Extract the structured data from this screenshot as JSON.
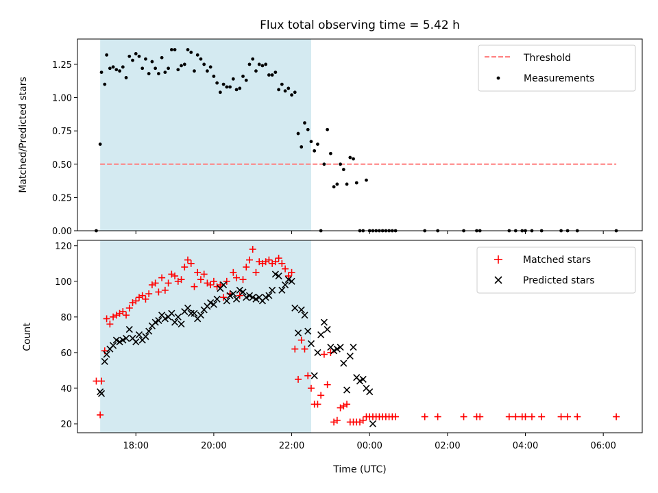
{
  "chart_data": [
    {
      "type": "scatter",
      "title": "Flux total observing time = 5.42 h",
      "xlabel": "",
      "ylabel": "Matched/Predicted stars",
      "xlim": [
        "16:30",
        "07:00"
      ],
      "ylim": [
        0,
        1.44
      ],
      "y_ticks": [
        "0.00",
        "0.25",
        "0.50",
        "0.75",
        "1.00",
        "1.25"
      ],
      "x_ticks": [
        "18:00",
        "20:00",
        "22:00",
        "00:00",
        "02:00",
        "04:00",
        "06:00"
      ],
      "tick_labels_visible": false,
      "shaded_interval": {
        "from": "17:05",
        "to": "22:30",
        "color": "#d4eaf1"
      },
      "legend_position": "upper right",
      "series": [
        {
          "name": "Threshold",
          "style": "dashed-line",
          "color": "#ff7f7f",
          "x": [
            "17:05",
            "06:20"
          ],
          "y": [
            0.5,
            0.5
          ]
        },
        {
          "name": "Measurements",
          "style": "dot",
          "color": "#000000",
          "x": [
            "16:59",
            "17:05",
            "17:07",
            "17:12",
            "17:15",
            "17:20",
            "17:25",
            "17:30",
            "17:35",
            "17:40",
            "17:45",
            "17:50",
            "17:55",
            "18:00",
            "18:05",
            "18:10",
            "18:15",
            "18:20",
            "18:25",
            "18:30",
            "18:35",
            "18:40",
            "18:45",
            "18:50",
            "18:55",
            "19:00",
            "19:05",
            "19:10",
            "19:15",
            "19:20",
            "19:25",
            "19:30",
            "19:35",
            "19:40",
            "19:45",
            "19:50",
            "19:55",
            "20:00",
            "20:05",
            "20:10",
            "20:15",
            "20:20",
            "20:25",
            "20:30",
            "20:35",
            "20:40",
            "20:45",
            "20:50",
            "20:55",
            "21:00",
            "21:05",
            "21:10",
            "21:15",
            "21:20",
            "21:25",
            "21:30",
            "21:35",
            "21:40",
            "21:45",
            "21:50",
            "21:55",
            "22:00",
            "22:05",
            "22:10",
            "22:15",
            "22:20",
            "22:25",
            "22:30",
            "22:35",
            "22:40",
            "22:45",
            "22:50",
            "22:55",
            "23:00",
            "23:05",
            "23:10",
            "23:15",
            "23:20",
            "23:25",
            "23:30",
            "23:35",
            "23:40",
            "23:45",
            "23:50",
            "23:55",
            "00:00",
            "00:05",
            "00:10",
            "00:15",
            "00:20",
            "00:25",
            "00:30",
            "00:35",
            "00:40",
            "01:25",
            "01:45",
            "02:25",
            "02:45",
            "02:50",
            "03:35",
            "03:45",
            "03:55",
            "04:00",
            "04:10",
            "04:25",
            "04:55",
            "05:05",
            "05:20",
            "06:20"
          ],
          "y": [
            0,
            0.65,
            1.19,
            1.1,
            1.32,
            1.22,
            1.23,
            1.21,
            1.2,
            1.23,
            1.15,
            1.31,
            1.28,
            1.33,
            1.31,
            1.22,
            1.29,
            1.18,
            1.27,
            1.22,
            1.18,
            1.3,
            1.19,
            1.22,
            1.36,
            1.36,
            1.21,
            1.24,
            1.25,
            1.36,
            1.34,
            1.2,
            1.32,
            1.29,
            1.25,
            1.2,
            1.23,
            1.16,
            1.11,
            1.04,
            1.1,
            1.08,
            1.08,
            1.14,
            1.06,
            1.07,
            1.16,
            1.13,
            1.25,
            1.29,
            1.2,
            1.25,
            1.24,
            1.25,
            1.17,
            1.17,
            1.19,
            1.06,
            1.1,
            1.05,
            1.07,
            1.02,
            1.04,
            0.73,
            0.63,
            0.81,
            0.76,
            0.67,
            0.6,
            0.65,
            0,
            0.5,
            0.76,
            0.58,
            0.33,
            0.35,
            0.5,
            0.46,
            0.35,
            0.55,
            0.54,
            0.36,
            0,
            0,
            0.38,
            0,
            0,
            0,
            0,
            0,
            0,
            0,
            0,
            0,
            0,
            0,
            0,
            0,
            0,
            0,
            0,
            0,
            0,
            0,
            0,
            0,
            0,
            0,
            0
          ]
        }
      ]
    },
    {
      "type": "scatter",
      "title": "",
      "xlabel": "Time (UTC)",
      "ylabel": "Count",
      "xlim": [
        "16:30",
        "07:00"
      ],
      "ylim": [
        15,
        123
      ],
      "y_ticks": [
        "20",
        "40",
        "60",
        "80",
        "100",
        "120"
      ],
      "x_ticks": [
        "18:00",
        "20:00",
        "22:00",
        "00:00",
        "02:00",
        "04:00",
        "06:00"
      ],
      "shaded_interval": {
        "from": "17:05",
        "to": "22:30",
        "color": "#d4eaf1"
      },
      "legend_position": "upper right",
      "series": [
        {
          "name": "Matched stars",
          "marker": "plus",
          "color": "#ff0000",
          "x": [
            "16:59",
            "17:05",
            "17:07",
            "17:12",
            "17:15",
            "17:20",
            "17:25",
            "17:30",
            "17:35",
            "17:40",
            "17:45",
            "17:50",
            "17:55",
            "18:00",
            "18:05",
            "18:10",
            "18:15",
            "18:20",
            "18:25",
            "18:30",
            "18:35",
            "18:40",
            "18:45",
            "18:50",
            "18:55",
            "19:00",
            "19:05",
            "19:10",
            "19:15",
            "19:20",
            "19:25",
            "19:30",
            "19:35",
            "19:40",
            "19:45",
            "19:50",
            "19:55",
            "20:00",
            "20:05",
            "20:10",
            "20:15",
            "20:20",
            "20:25",
            "20:30",
            "20:35",
            "20:40",
            "20:45",
            "20:50",
            "20:55",
            "21:00",
            "21:05",
            "21:10",
            "21:15",
            "21:20",
            "21:25",
            "21:30",
            "21:35",
            "21:40",
            "21:45",
            "21:50",
            "21:55",
            "22:00",
            "22:05",
            "22:10",
            "22:15",
            "22:20",
            "22:25",
            "22:30",
            "22:35",
            "22:40",
            "22:45",
            "22:50",
            "22:55",
            "23:00",
            "23:05",
            "23:10",
            "23:15",
            "23:20",
            "23:25",
            "23:30",
            "23:35",
            "23:40",
            "23:45",
            "23:50",
            "23:55",
            "00:00",
            "00:05",
            "00:10",
            "00:15",
            "00:20",
            "00:25",
            "00:30",
            "00:35",
            "00:40",
            "01:25",
            "01:45",
            "02:25",
            "02:45",
            "02:50",
            "03:35",
            "03:45",
            "03:55",
            "04:00",
            "04:10",
            "04:25",
            "04:55",
            "05:05",
            "05:20",
            "06:20"
          ],
          "y": [
            44,
            25,
            44,
            61,
            79,
            76,
            80,
            81,
            82,
            83,
            81,
            85,
            88,
            89,
            91,
            92,
            90,
            93,
            98,
            99,
            94,
            102,
            95,
            99,
            104,
            103,
            100,
            101,
            108,
            112,
            110,
            97,
            105,
            101,
            104,
            99,
            98,
            100,
            97,
            98,
            91,
            100,
            93,
            105,
            102,
            92,
            101,
            108,
            112,
            118,
            105,
            111,
            110,
            111,
            112,
            110,
            111,
            113,
            110,
            107,
            103,
            105,
            62,
            45,
            67,
            62,
            47,
            40,
            31,
            31,
            36,
            59,
            42,
            60,
            21,
            22,
            29,
            30,
            31,
            21,
            21,
            21,
            21,
            22,
            24,
            24,
            24,
            24,
            24,
            24,
            24,
            24,
            24,
            24,
            24,
            24,
            24,
            24,
            24,
            24,
            24,
            24,
            24,
            24,
            24,
            24,
            24,
            24,
            24
          ]
        },
        {
          "name": "Predicted stars",
          "marker": "x",
          "color": "#000000",
          "x": [
            "17:05",
            "17:07",
            "17:12",
            "17:15",
            "17:20",
            "17:25",
            "17:30",
            "17:35",
            "17:40",
            "17:45",
            "17:50",
            "17:55",
            "18:00",
            "18:05",
            "18:10",
            "18:15",
            "18:20",
            "18:25",
            "18:30",
            "18:35",
            "18:40",
            "18:45",
            "18:50",
            "18:55",
            "19:00",
            "19:05",
            "19:10",
            "19:15",
            "19:20",
            "19:25",
            "19:30",
            "19:35",
            "19:40",
            "19:45",
            "19:50",
            "19:55",
            "20:00",
            "20:05",
            "20:10",
            "20:15",
            "20:20",
            "20:25",
            "20:30",
            "20:35",
            "20:40",
            "20:45",
            "20:50",
            "20:55",
            "21:00",
            "21:05",
            "21:10",
            "21:15",
            "21:20",
            "21:25",
            "21:30",
            "21:35",
            "21:40",
            "21:45",
            "21:50",
            "21:55",
            "22:00",
            "22:05",
            "22:10",
            "22:15",
            "22:20",
            "22:25",
            "22:30",
            "22:35",
            "22:40",
            "22:45",
            "22:50",
            "22:55",
            "23:00",
            "23:05",
            "23:10",
            "23:15",
            "23:20",
            "23:25",
            "23:30",
            "23:35",
            "23:40",
            "23:45",
            "23:50",
            "23:55",
            "00:00",
            "00:05"
          ],
          "y": [
            38,
            37,
            55,
            59,
            62,
            64,
            67,
            66,
            67,
            68,
            73,
            68,
            66,
            70,
            67,
            69,
            72,
            75,
            77,
            78,
            81,
            79,
            80,
            82,
            77,
            80,
            76,
            83,
            85,
            82,
            82,
            79,
            81,
            84,
            86,
            88,
            87,
            90,
            96,
            98,
            89,
            92,
            93,
            90,
            95,
            94,
            91,
            92,
            91,
            90,
            91,
            89,
            91,
            92,
            95,
            104,
            103,
            95,
            98,
            101,
            100,
            85,
            71,
            84,
            81,
            72,
            65,
            47,
            60,
            70,
            77,
            73,
            63,
            61,
            62,
            63,
            54,
            39,
            58,
            63,
            46,
            44,
            45,
            40,
            38,
            20
          ]
        }
      ]
    }
  ]
}
